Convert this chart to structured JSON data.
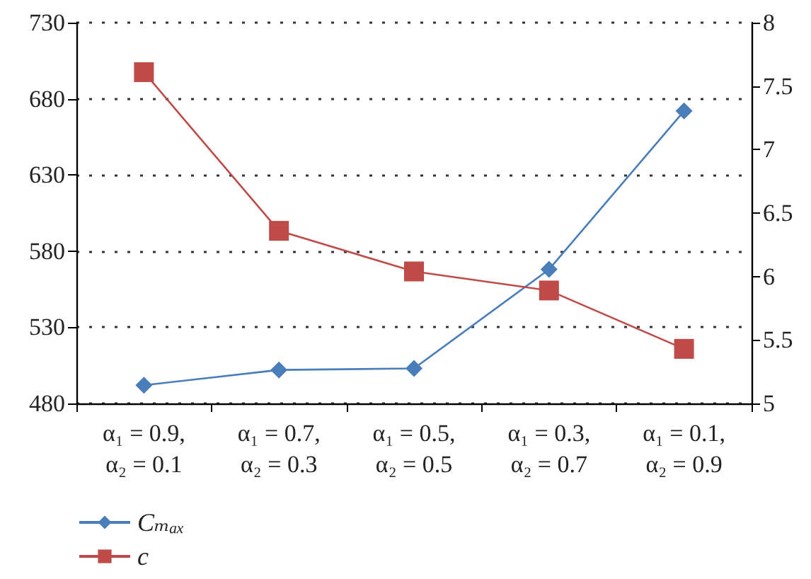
{
  "chart_data": {
    "type": "line",
    "categories": [
      "α₁ = 0.9,\nα₂ = 0.1",
      "α₁ = 0.7,\nα₂ = 0.3",
      "α₁ = 0.5,\nα₂ = 0.5",
      "α₁ = 0.3,\nα₂ = 0.7",
      "α₁ = 0.1,\nα₂ = 0.9"
    ],
    "series": [
      {
        "name": "Cₘₐₓ",
        "color": "#4a7ebb",
        "marker": "diamond",
        "values": [
          492,
          502,
          503,
          568,
          672
        ]
      },
      {
        "name": "c",
        "color": "#be4b48",
        "marker": "square",
        "axis": "y2",
        "values": [
          7.61,
          6.36,
          6.04,
          5.89,
          5.43
        ]
      }
    ],
    "ylim": [
      480,
      730
    ],
    "yticks": [
      480,
      530,
      580,
      630,
      680,
      730
    ],
    "y2lim": [
      5,
      8
    ],
    "y2ticks": [
      5,
      5.5,
      6,
      6.5,
      7,
      7.5,
      8
    ],
    "grid": "y",
    "legend": "bottom left",
    "line_style": "solid"
  }
}
